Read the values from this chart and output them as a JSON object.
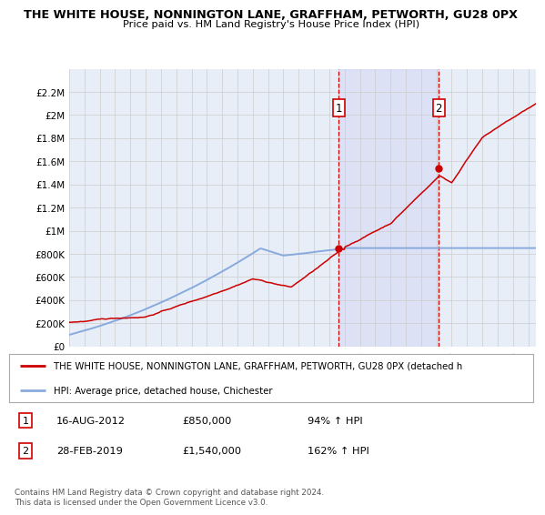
{
  "title1": "THE WHITE HOUSE, NONNINGTON LANE, GRAFFHAM, PETWORTH, GU28 0PX",
  "title2": "Price paid vs. HM Land Registry's House Price Index (HPI)",
  "ylim": [
    0,
    2400000
  ],
  "yticks": [
    0,
    200000,
    400000,
    600000,
    800000,
    1000000,
    1200000,
    1400000,
    1600000,
    1800000,
    2000000,
    2200000
  ],
  "ytick_labels": [
    "£0",
    "£200K",
    "£400K",
    "£600K",
    "£800K",
    "£1M",
    "£1.2M",
    "£1.4M",
    "£1.6M",
    "£1.8M",
    "£2M",
    "£2.2M"
  ],
  "xlim_start": 1995.0,
  "xlim_end": 2025.5,
  "xticks": [
    1995,
    1996,
    1997,
    1998,
    1999,
    2000,
    2001,
    2002,
    2003,
    2004,
    2005,
    2006,
    2007,
    2008,
    2009,
    2010,
    2011,
    2012,
    2013,
    2014,
    2015,
    2016,
    2017,
    2018,
    2019,
    2020,
    2021,
    2022,
    2023,
    2024,
    2025
  ],
  "background_color": "#ffffff",
  "plot_bg_color": "#e8eef8",
  "grid_color": "#cccccc",
  "red_color": "#cc0000",
  "blue_color": "#88aadd",
  "marker1_date": 2012.62,
  "marker1_price": 850000,
  "marker2_date": 2019.16,
  "marker2_price": 1540000,
  "legend_red_label": "THE WHITE HOUSE, NONNINGTON LANE, GRAFFHAM, PETWORTH, GU28 0PX (detached h",
  "legend_blue_label": "HPI: Average price, detached house, Chichester",
  "note1_num": "1",
  "note1_date": "16-AUG-2012",
  "note1_price": "£850,000",
  "note1_pct": "94% ↑ HPI",
  "note2_num": "2",
  "note2_date": "28-FEB-2019",
  "note2_price": "£1,540,000",
  "note2_pct": "162% ↑ HPI",
  "footer": "Contains HM Land Registry data © Crown copyright and database right 2024.\nThis data is licensed under the Open Government Licence v3.0."
}
